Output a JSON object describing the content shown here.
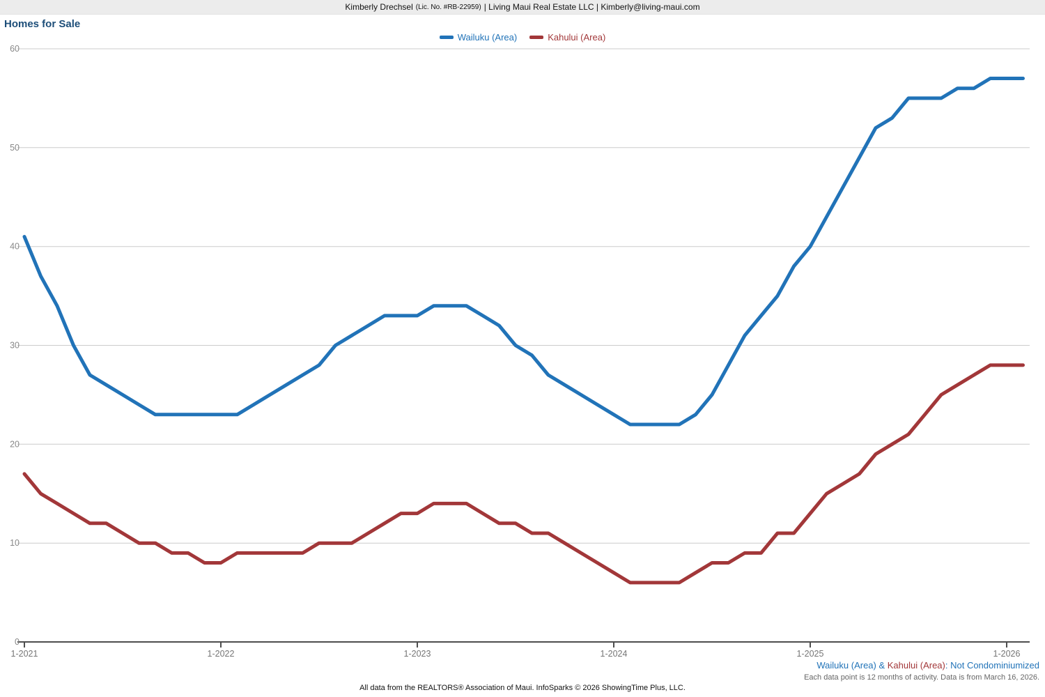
{
  "header_bar": {
    "agent": "Kimberly Drechsel",
    "license": "(Lic. No. #RB-22959)",
    "rest": "| Living Maui Real Estate LLC | Kimberly@living-maui.com"
  },
  "page_title": "Homes for Sale",
  "legend": {
    "items": [
      {
        "label": "Wailuku (Area)",
        "color": "#2173b8"
      },
      {
        "label": "Kahului (Area)",
        "color": "#a23739"
      }
    ]
  },
  "chart_data": {
    "type": "line",
    "title": "Homes for Sale",
    "x_unit": "month",
    "x_start": "1-2021",
    "x_end": "2-2026",
    "points_per_series": 62,
    "x_tick_labels": [
      "1-2021",
      "1-2022",
      "1-2023",
      "1-2024",
      "1-2025",
      "1-2026"
    ],
    "x_tick_indices": [
      0,
      12,
      24,
      36,
      48,
      60
    ],
    "ylim": [
      0,
      60
    ],
    "yticks": [
      0,
      10,
      20,
      30,
      40,
      50,
      60
    ],
    "grid": "horizontal",
    "legend_position": "top-center",
    "series": [
      {
        "name": "Wailuku (Area)",
        "color": "#2173b8",
        "values": [
          41,
          37,
          34,
          30,
          27,
          26,
          25,
          24,
          23,
          23,
          23,
          23,
          23,
          23,
          24,
          25,
          26,
          27,
          28,
          30,
          31,
          32,
          33,
          33,
          33,
          34,
          34,
          34,
          33,
          32,
          30,
          29,
          27,
          26,
          25,
          24,
          23,
          22,
          22,
          22,
          22,
          23,
          25,
          28,
          31,
          33,
          35,
          38,
          40,
          43,
          46,
          49,
          52,
          53,
          55,
          55,
          55,
          56,
          56,
          57,
          57,
          57
        ]
      },
      {
        "name": "Kahului (Area)",
        "color": "#a23739",
        "values": [
          17,
          15,
          14,
          13,
          12,
          12,
          11,
          10,
          10,
          9,
          9,
          8,
          8,
          9,
          9,
          9,
          9,
          9,
          10,
          10,
          10,
          11,
          12,
          13,
          13,
          14,
          14,
          14,
          13,
          12,
          12,
          11,
          11,
          10,
          9,
          8,
          7,
          6,
          6,
          6,
          6,
          7,
          8,
          8,
          9,
          9,
          11,
          11,
          13,
          15,
          16,
          17,
          19,
          20,
          21,
          23,
          25,
          26,
          27,
          28,
          28,
          28
        ]
      }
    ]
  },
  "footnote": {
    "wailuku": "Wailuku (Area)",
    "ampersand": " & ",
    "kahului": "Kahului (Area)",
    "suffix": ": Not Condominiumized",
    "line2": "Each data point is 12 months of activity. Data is from March 16, 2026."
  },
  "footer": "All data from the REALTORS® Association of Maui. InfoSparks © 2026 ShowingTime Plus, LLC.",
  "colors": {
    "title": "#1d4e79",
    "wailuku": "#2173b8",
    "kahului": "#a23739",
    "grid": "#cccccc",
    "axis": "#4d4d4d",
    "y_label": "#888888",
    "x_label": "#757575"
  }
}
